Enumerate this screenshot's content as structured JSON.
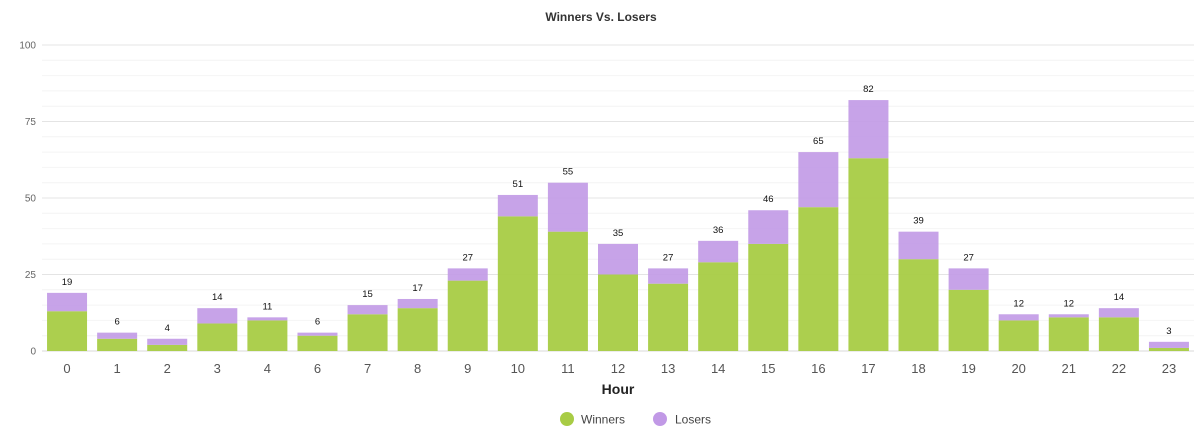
{
  "chart_data": {
    "type": "bar",
    "stacked": true,
    "title": "Winners Vs. Losers",
    "xlabel": "Hour",
    "ylabel": "",
    "ylim": [
      0,
      100
    ],
    "yticks": [
      "0",
      "25",
      "50",
      "75",
      "100"
    ],
    "categories": [
      "0",
      "1",
      "2",
      "3",
      "4",
      "6",
      "7",
      "8",
      "9",
      "10",
      "11",
      "12",
      "13",
      "14",
      "15",
      "16",
      "17",
      "18",
      "19",
      "20",
      "21",
      "22",
      "23"
    ],
    "series": [
      {
        "name": "Winners",
        "color": "#a8cc45",
        "values": [
          13,
          4,
          2,
          9,
          10,
          5,
          12,
          14,
          23,
          44,
          39,
          25,
          22,
          29,
          35,
          47,
          63,
          30,
          20,
          10,
          11,
          11,
          1
        ]
      },
      {
        "name": "Losers",
        "color": "#c199e6",
        "values": [
          6,
          2,
          2,
          5,
          1,
          1,
          3,
          3,
          4,
          7,
          16,
          10,
          5,
          7,
          11,
          18,
          19,
          9,
          7,
          2,
          1,
          3,
          2
        ]
      }
    ],
    "totals": [
      "19",
      "6",
      "4",
      "14",
      "11",
      "6",
      "15",
      "17",
      "27",
      "51",
      "55",
      "35",
      "27",
      "36",
      "46",
      "65",
      "82",
      "39",
      "27",
      "12",
      "12",
      "14",
      "3"
    ],
    "grid": true,
    "legend_position": "bottom-center"
  }
}
